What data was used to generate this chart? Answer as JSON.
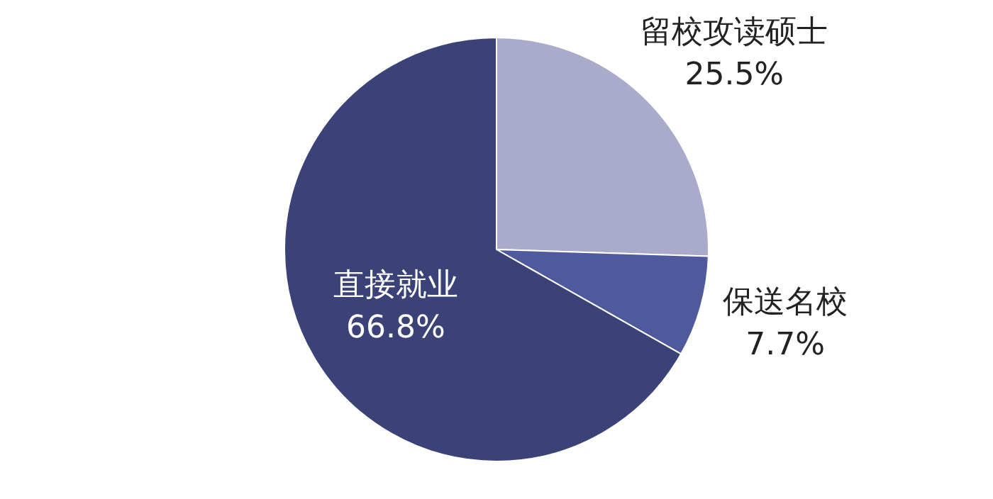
{
  "chart_data": {
    "type": "pie",
    "categories": [
      "留校攻读硕士",
      "保送名校",
      "直接就业"
    ],
    "values": [
      25.5,
      7.7,
      66.8
    ],
    "colors": [
      "#aaaacb",
      "#4f5a9e",
      "#3b4277"
    ],
    "value_labels": [
      "25.5%",
      "7.7%",
      "66.8%"
    ],
    "legend": false
  }
}
